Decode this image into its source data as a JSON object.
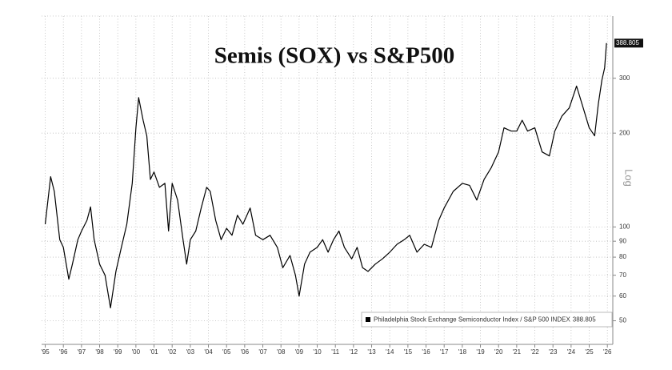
{
  "chart_data": {
    "type": "line",
    "title": "Semis (SOX) vs S&P500",
    "ylabel": "Log",
    "log_scale": true,
    "grid": true,
    "legend": "lower right",
    "xlim": [
      1994.8,
      2026.3
    ],
    "ylim": [
      42,
      475
    ],
    "xticks": [
      {
        "value": 1995,
        "label": "'95"
      },
      {
        "value": 1996,
        "label": "'96"
      },
      {
        "value": 1997,
        "label": "'97"
      },
      {
        "value": 1998,
        "label": "'98"
      },
      {
        "value": 1999,
        "label": "'99"
      },
      {
        "value": 2000,
        "label": "'00"
      },
      {
        "value": 2001,
        "label": "'01"
      },
      {
        "value": 2002,
        "label": "'02"
      },
      {
        "value": 2003,
        "label": "'03"
      },
      {
        "value": 2004,
        "label": "'04"
      },
      {
        "value": 2005,
        "label": "'05"
      },
      {
        "value": 2006,
        "label": "'06"
      },
      {
        "value": 2007,
        "label": "'07"
      },
      {
        "value": 2008,
        "label": "'08"
      },
      {
        "value": 2009,
        "label": "'09"
      },
      {
        "value": 2010,
        "label": "'10"
      },
      {
        "value": 2011,
        "label": "'11"
      },
      {
        "value": 2012,
        "label": "'12"
      },
      {
        "value": 2013,
        "label": "'13"
      },
      {
        "value": 2014,
        "label": "'14"
      },
      {
        "value": 2015,
        "label": "'15"
      },
      {
        "value": 2016,
        "label": "'16"
      },
      {
        "value": 2017,
        "label": "'17"
      },
      {
        "value": 2018,
        "label": "'18"
      },
      {
        "value": 2019,
        "label": "'19"
      },
      {
        "value": 2020,
        "label": "'20"
      },
      {
        "value": 2021,
        "label": "'21"
      },
      {
        "value": 2022,
        "label": "'22"
      },
      {
        "value": 2023,
        "label": "'23"
      },
      {
        "value": 2024,
        "label": "'24"
      },
      {
        "value": 2025,
        "label": "'25"
      },
      {
        "value": 2026,
        "label": "'26"
      }
    ],
    "yticks": [
      50,
      60,
      70,
      80,
      90,
      100,
      200,
      300
    ],
    "x": [
      1995.0,
      1995.3,
      1995.5,
      1995.8,
      1996.0,
      1996.3,
      1996.5,
      1996.8,
      1997.0,
      1997.3,
      1997.5,
      1997.7,
      1998.0,
      1998.3,
      1998.6,
      1998.9,
      1999.2,
      1999.5,
      1999.8,
      2000.0,
      2000.15,
      2000.4,
      2000.6,
      2000.8,
      2001.0,
      2001.3,
      2001.6,
      2001.8,
      2002.0,
      2002.3,
      2002.6,
      2002.8,
      2003.0,
      2003.3,
      2003.6,
      2003.9,
      2004.1,
      2004.4,
      2004.7,
      2005.0,
      2005.3,
      2005.6,
      2005.9,
      2006.3,
      2006.6,
      2007.0,
      2007.4,
      2007.8,
      2008.1,
      2008.5,
      2008.8,
      2009.0,
      2009.3,
      2009.6,
      2010.0,
      2010.3,
      2010.6,
      2010.9,
      2011.2,
      2011.5,
      2011.9,
      2012.2,
      2012.5,
      2012.8,
      2013.2,
      2013.6,
      2014.0,
      2014.4,
      2014.8,
      2015.1,
      2015.5,
      2015.9,
      2016.3,
      2016.7,
      2017.0,
      2017.5,
      2018.0,
      2018.4,
      2018.8,
      2019.2,
      2019.6,
      2020.0,
      2020.3,
      2020.7,
      2021.0,
      2021.3,
      2021.6,
      2022.0,
      2022.4,
      2022.8,
      2023.1,
      2023.5,
      2023.9,
      2024.3,
      2024.6,
      2025.0,
      2025.3,
      2025.5,
      2025.7,
      2025.85,
      2025.95
    ],
    "series": [
      {
        "name": "Philadelphia Stock Exchange Semiconductor Index / S&P 500 INDEX",
        "color": "#000000",
        "values": [
          102,
          145,
          130,
          91,
          86,
          68,
          76,
          91,
          97,
          105,
          116,
          91,
          76,
          70,
          55,
          72,
          86,
          102,
          138,
          208,
          260,
          220,
          196,
          142,
          150,
          134,
          138,
          97,
          138,
          122,
          91,
          76,
          91,
          97,
          115,
          134,
          130,
          105,
          91,
          99,
          94,
          109,
          102,
          115,
          94,
          91,
          94,
          86,
          74,
          81,
          70,
          60,
          76,
          83,
          86,
          91,
          83,
          91,
          97,
          86,
          79,
          86,
          74,
          72,
          76,
          79,
          83,
          88,
          91,
          94,
          83,
          88,
          86,
          105,
          115,
          130,
          138,
          136,
          122,
          142,
          155,
          174,
          208,
          203,
          203,
          220,
          203,
          208,
          174,
          169,
          203,
          227,
          241,
          283,
          248,
          208,
          196,
          248,
          296,
          324,
          388.805
        ]
      }
    ]
  }
}
